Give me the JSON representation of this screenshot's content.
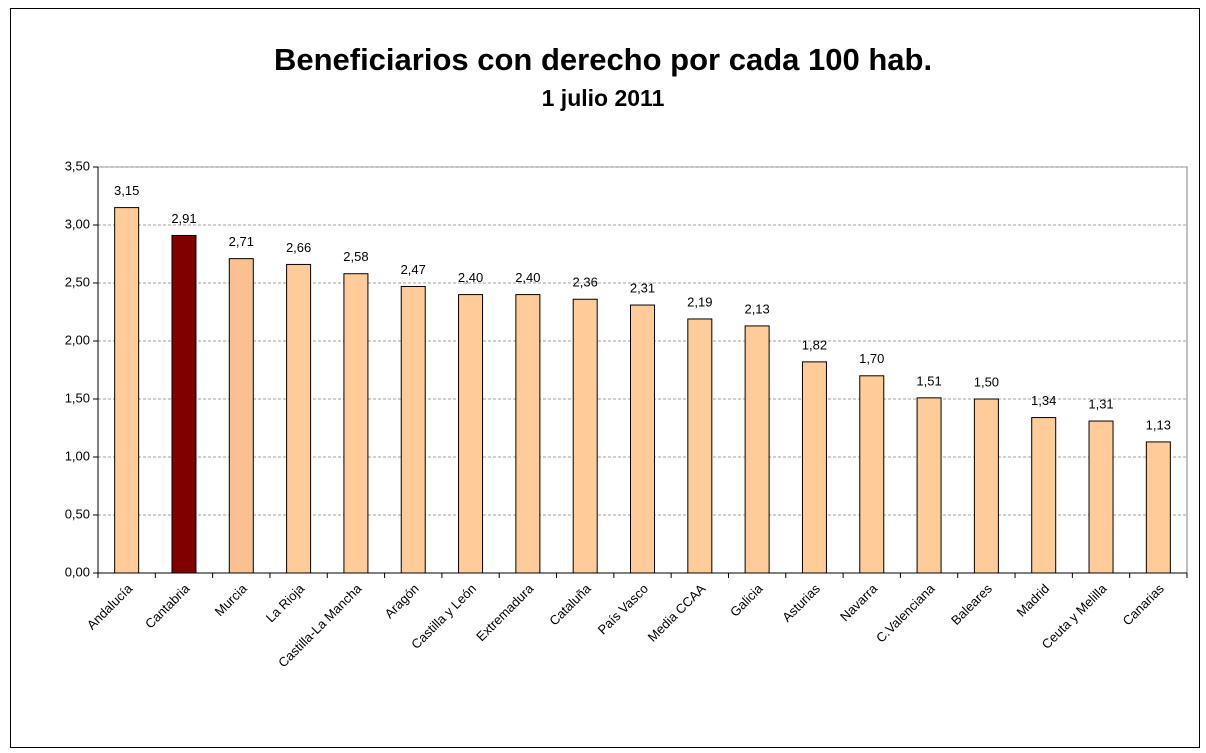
{
  "chart_data": {
    "type": "bar",
    "title": "Beneficiarios con derecho por cada 100 hab.",
    "subtitle": "1 julio 2011",
    "categories": [
      "Andalucía",
      "Cantabria",
      "Murcia",
      "La Rioja",
      "Castilla-La Mancha",
      "Aragón",
      "Castilla y León",
      "Extremadura",
      "Cataluña",
      "País Vasco",
      "Media CCAA",
      "Galicia",
      "Asturias",
      "Navarra",
      "C.Valenciana",
      "Baleares",
      "Madrid",
      "Ceuta y Melilla",
      "Canarias"
    ],
    "values": [
      3.15,
      2.91,
      2.71,
      2.66,
      2.58,
      2.47,
      2.4,
      2.4,
      2.36,
      2.31,
      2.19,
      2.13,
      1.82,
      1.7,
      1.51,
      1.5,
      1.34,
      1.31,
      1.13
    ],
    "value_labels": [
      "3,15",
      "2,91",
      "2,71",
      "2,66",
      "2,58",
      "2,47",
      "2,40",
      "2,40",
      "2,36",
      "2,31",
      "2,19",
      "2,13",
      "1,82",
      "1,70",
      "1,51",
      "1,50",
      "1,34",
      "1,31",
      "1,13"
    ],
    "colors": [
      "#FFCC99",
      "#800000",
      "#FAC090",
      "#FFCC99",
      "#FFCC99",
      "#FFCC99",
      "#FFCC99",
      "#FFCC99",
      "#FFCC99",
      "#FFCC99",
      "#FFCC99",
      "#FFCC99",
      "#FFCC99",
      "#FFCC99",
      "#FFCC99",
      "#FFCC99",
      "#FFCC99",
      "#FFCC99",
      "#FFCC99"
    ],
    "ylim": [
      0,
      3.5
    ],
    "yticks": [
      {
        "value": 0,
        "label": "0,00"
      },
      {
        "value": 0.5,
        "label": "0,50"
      },
      {
        "value": 1,
        "label": "1,00"
      },
      {
        "value": 1.5,
        "label": "1,50"
      },
      {
        "value": 2,
        "label": "2,00"
      },
      {
        "value": 2.5,
        "label": "2,50"
      },
      {
        "value": 3,
        "label": "3,00"
      },
      {
        "value": 3.5,
        "label": "3,50"
      }
    ],
    "grid": true
  }
}
